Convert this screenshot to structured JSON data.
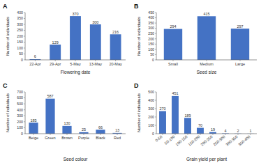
{
  "chart_data": [
    {
      "type": "bar",
      "title": "A",
      "categories": [
        "22-Apr",
        "29-Apr",
        "5-May",
        "13-May",
        "20-May"
      ],
      "values": [
        6,
        129,
        370,
        300,
        216
      ],
      "xlabel": "Flowering date",
      "ylabel": "Number of individuals",
      "ylim": [
        0,
        400
      ],
      "yticks": [
        0,
        50,
        100,
        150,
        200,
        250,
        300,
        350,
        400
      ],
      "color": "#4472c4",
      "data_labels": true,
      "grid": false
    },
    {
      "type": "bar",
      "title": "B",
      "categories": [
        "Small",
        "Medium",
        "Large"
      ],
      "values": [
        294,
        415,
        297
      ],
      "xlabel": "Seed size",
      "ylabel": "Number of individuals",
      "ylim": [
        0,
        450
      ],
      "yticks": [
        0,
        50,
        100,
        150,
        200,
        250,
        300,
        350,
        400,
        450
      ],
      "color": "#4472c4",
      "data_labels": true,
      "grid": false
    },
    {
      "type": "bar",
      "title": "C",
      "categories": [
        "Beige",
        "Green",
        "Brown",
        "Purple",
        "Black",
        "Red"
      ],
      "values": [
        185,
        587,
        130,
        25,
        66,
        13
      ],
      "xlabel": "Seed colour",
      "ylabel": "Number of individuals",
      "ylim": [
        0,
        700
      ],
      "yticks": [
        0,
        100,
        200,
        300,
        400,
        500,
        600,
        700
      ],
      "color": "#4472c4",
      "data_labels": true,
      "grid": false
    },
    {
      "type": "bar",
      "title": "D",
      "categories": [
        "0-50",
        "50-100",
        "100-150",
        "150-200",
        "200-250",
        "250-300",
        "300-350",
        "350-400"
      ],
      "values": [
        270,
        451,
        189,
        70,
        19,
        4,
        2,
        1
      ],
      "xlabel": "Grain yield per plant",
      "ylabel": "Number of individuals",
      "ylim": [
        0,
        500
      ],
      "yticks": [
        0,
        100,
        200,
        300,
        400,
        500
      ],
      "color": "#4472c4",
      "data_labels": true,
      "grid": false
    }
  ]
}
